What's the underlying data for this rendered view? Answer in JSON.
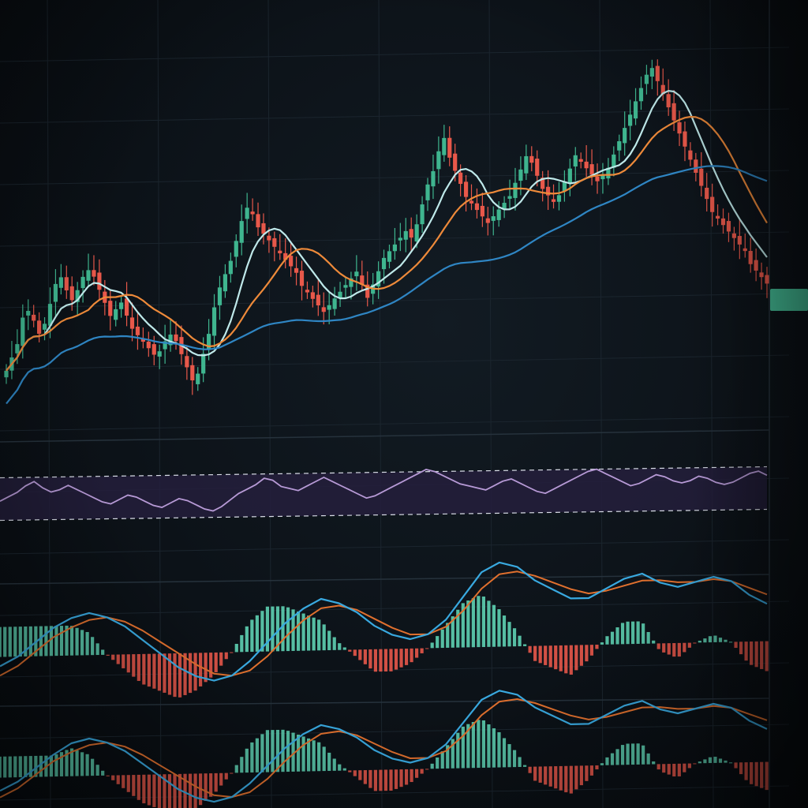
{
  "colors": {
    "background": "#0c1218",
    "grid": "#1b252e",
    "candle_up": "#3fb58f",
    "candle_down": "#e8584a",
    "ma_fast": "#bfe9ea",
    "ma_mid": "#ee8a3a",
    "ma_slow": "#2f86c4",
    "rsi_line": "#b79ad6",
    "rsi_band": "#241f3c",
    "macd_line": "#39a9e0",
    "signal_line": "#e0702e",
    "hist_up": "#5ed1b3",
    "hist_down": "#e8584a",
    "price_tag": "#46c39b"
  },
  "axis": {
    "price_labels": [
      "",
      "",
      "",
      "",
      "",
      "",
      "",
      "",
      ""
    ],
    "time_labels": []
  },
  "price_tag": {
    "label": ""
  },
  "chart_data": [
    {
      "type": "candlestick",
      "title": "",
      "x": [
        1,
        2,
        3,
        4,
        5,
        6,
        7,
        8,
        9,
        10,
        11,
        12,
        13,
        14,
        15,
        16,
        17,
        18,
        19,
        20,
        21,
        22,
        23,
        24,
        25,
        26,
        27,
        28,
        29,
        30,
        31,
        32,
        33,
        34,
        35,
        36,
        37,
        38,
        39,
        40,
        41,
        42,
        43,
        44,
        45,
        46,
        47,
        48,
        49,
        50,
        51,
        52,
        53,
        54,
        55,
        56,
        57,
        58,
        59,
        60,
        61,
        62,
        63,
        64,
        65,
        66,
        67,
        68,
        69,
        70,
        71,
        72,
        73,
        74,
        75,
        76,
        77,
        78,
        79,
        80,
        81,
        82,
        83,
        84,
        85,
        86,
        87,
        88,
        89,
        90,
        91,
        92,
        93,
        94,
        95,
        96,
        97,
        98,
        99,
        100,
        101,
        102,
        103,
        104,
        105,
        106,
        107,
        108,
        109,
        110,
        111,
        112,
        113,
        114,
        115,
        116,
        117,
        118,
        119,
        120,
        121,
        122,
        123,
        124,
        125,
        126,
        127,
        128,
        129,
        130,
        131,
        132,
        133,
        134,
        135,
        136,
        137,
        138,
        139,
        140
      ],
      "series": [
        {
          "name": "close",
          "values": [
            42,
            46,
            50,
            58,
            60,
            57,
            53,
            56,
            62,
            68,
            70,
            66,
            63,
            66,
            70,
            72,
            70,
            66,
            62,
            58,
            60,
            62,
            58,
            54,
            52,
            50,
            48,
            46,
            47,
            50,
            52,
            50,
            46,
            42,
            38,
            40,
            46,
            52,
            60,
            66,
            70,
            74,
            80,
            86,
            90,
            88,
            84,
            82,
            80,
            78,
            76,
            74,
            72,
            70,
            66,
            64,
            62,
            60,
            58,
            60,
            62,
            64,
            66,
            68,
            70,
            66,
            62,
            66,
            70,
            74,
            76,
            78,
            80,
            82,
            80,
            84,
            90,
            96,
            100,
            106,
            110,
            104,
            100,
            96,
            92,
            90,
            88,
            86,
            84,
            86,
            88,
            90,
            92,
            96,
            100,
            104,
            102,
            98,
            94,
            92,
            90,
            92,
            96,
            100,
            104,
            102,
            100,
            98,
            96,
            98,
            100,
            104,
            108,
            112,
            116,
            120,
            124,
            128,
            130,
            126,
            122,
            118,
            114,
            110,
            106,
            102,
            98,
            94,
            90,
            86,
            84,
            82,
            80,
            78,
            76,
            74,
            70,
            68,
            66,
            64
          ]
        }
      ],
      "moving_averages": [
        {
          "name": "",
          "color_key": "ma_fast"
        },
        {
          "name": "",
          "color_key": "ma_mid"
        },
        {
          "name": "",
          "color_key": "ma_slow"
        }
      ]
    },
    {
      "type": "line",
      "title": "",
      "ylim": [
        0,
        100
      ],
      "band": [
        30,
        70
      ],
      "series": [
        {
          "name": "",
          "values": [
            48,
            52,
            56,
            62,
            66,
            60,
            56,
            58,
            62,
            58,
            54,
            50,
            46,
            44,
            48,
            52,
            50,
            46,
            42,
            40,
            44,
            48,
            46,
            42,
            38,
            36,
            40,
            46,
            52,
            56,
            60,
            66,
            64,
            58,
            56,
            54,
            58,
            62,
            66,
            62,
            58,
            54,
            50,
            46,
            48,
            52,
            56,
            60,
            64,
            68,
            72,
            70,
            66,
            62,
            58,
            56,
            54,
            52,
            56,
            60,
            62,
            58,
            54,
            50,
            48,
            52,
            56,
            60,
            64,
            68,
            70,
            66,
            62,
            58,
            54,
            56,
            60,
            64,
            62,
            58,
            56,
            58,
            62,
            60,
            56,
            54,
            56,
            60,
            64,
            66,
            62
          ]
        }
      ]
    },
    {
      "type": "line",
      "title": "",
      "series": [
        {
          "name": "",
          "values": [
            -0.4,
            0.0,
            0.6,
            1.2,
            1.6,
            1.8,
            1.6,
            1.2,
            0.6,
            0.0,
            -0.6,
            -1.0,
            -1.2,
            -1.0,
            -0.4,
            0.4,
            1.2,
            1.8,
            2.2,
            2.0,
            1.6,
            1.0,
            0.6,
            0.4,
            0.6,
            1.2,
            2.2,
            3.2,
            3.6,
            3.4,
            2.8,
            2.4,
            2.0,
            2.0,
            2.4,
            2.8,
            3.0,
            2.6,
            2.4,
            2.6,
            2.8,
            2.6,
            2.0,
            1.6
          ]
        },
        {
          "name": "",
          "values": [
            -0.8,
            -0.4,
            0.2,
            0.8,
            1.2,
            1.5,
            1.6,
            1.4,
            1.0,
            0.5,
            0.0,
            -0.5,
            -0.9,
            -1.0,
            -0.8,
            -0.2,
            0.6,
            1.3,
            1.8,
            1.9,
            1.7,
            1.3,
            0.9,
            0.6,
            0.6,
            0.9,
            1.6,
            2.5,
            3.1,
            3.2,
            3.0,
            2.7,
            2.4,
            2.2,
            2.3,
            2.5,
            2.7,
            2.7,
            2.6,
            2.6,
            2.7,
            2.6,
            2.3,
            2.0
          ]
        }
      ]
    },
    {
      "type": "line",
      "title": "",
      "series": [
        {
          "name": "",
          "values": [
            -0.6,
            -0.2,
            0.4,
            1.0,
            1.5,
            1.7,
            1.5,
            1.1,
            0.5,
            -0.1,
            -0.7,
            -1.1,
            -1.3,
            -1.1,
            -0.5,
            0.3,
            1.1,
            1.7,
            2.1,
            1.9,
            1.5,
            0.9,
            0.5,
            0.3,
            0.5,
            1.1,
            2.1,
            3.1,
            3.5,
            3.3,
            2.7,
            2.3,
            1.9,
            1.9,
            2.3,
            2.7,
            2.9,
            2.5,
            2.3,
            2.5,
            2.7,
            2.5,
            1.9,
            1.5
          ]
        },
        {
          "name": "",
          "values": [
            -0.9,
            -0.5,
            0.1,
            0.7,
            1.1,
            1.4,
            1.5,
            1.3,
            0.9,
            0.4,
            -0.1,
            -0.6,
            -1.0,
            -1.1,
            -0.9,
            -0.3,
            0.5,
            1.2,
            1.7,
            1.8,
            1.6,
            1.2,
            0.8,
            0.5,
            0.5,
            0.8,
            1.5,
            2.4,
            3.0,
            3.1,
            2.9,
            2.6,
            2.3,
            2.1,
            2.2,
            2.4,
            2.6,
            2.6,
            2.5,
            2.5,
            2.6,
            2.5,
            2.2,
            1.9
          ]
        }
      ]
    }
  ]
}
